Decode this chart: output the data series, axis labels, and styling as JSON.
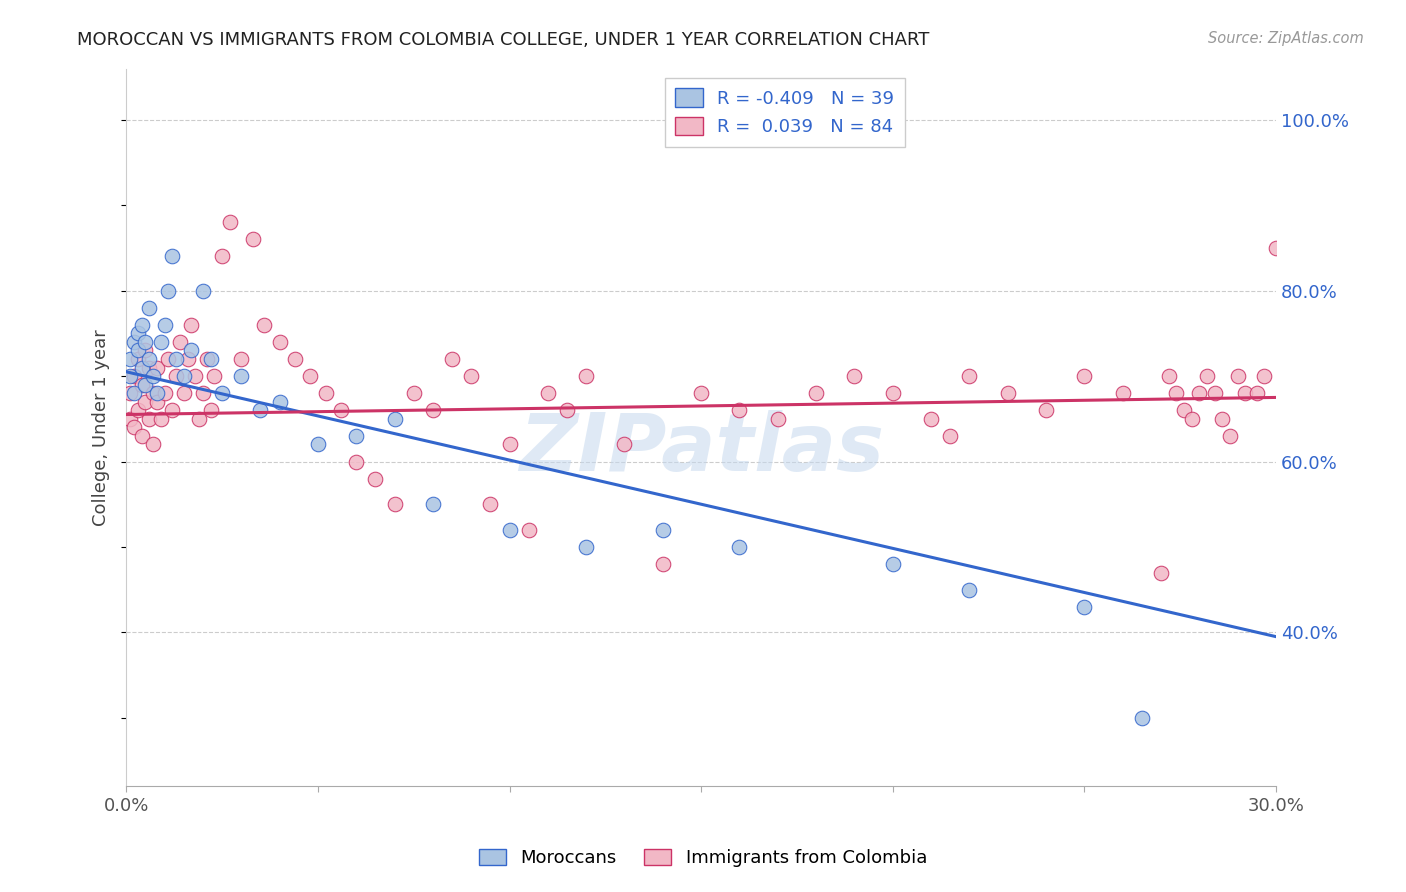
{
  "title": "MOROCCAN VS IMMIGRANTS FROM COLOMBIA COLLEGE, UNDER 1 YEAR CORRELATION CHART",
  "source": "Source: ZipAtlas.com",
  "ylabel": "College, Under 1 year",
  "watermark": "ZIPatlas",
  "moroccan_R": -0.409,
  "moroccan_N": 39,
  "colombia_R": 0.039,
  "colombia_N": 84,
  "xlim": [
    0.0,
    0.3
  ],
  "ylim": [
    0.22,
    1.06
  ],
  "xticks": [
    0.0,
    0.05,
    0.1,
    0.15,
    0.2,
    0.25,
    0.3
  ],
  "yticks": [
    0.4,
    0.6,
    0.8,
    1.0
  ],
  "color_moroccan": "#aac4e2",
  "color_colombia": "#f2b8c6",
  "line_color_moroccan": "#3366cc",
  "line_color_colombia": "#cc3366",
  "background_color": "#ffffff",
  "moroccan_x": [
    0.001,
    0.001,
    0.002,
    0.002,
    0.003,
    0.003,
    0.004,
    0.004,
    0.005,
    0.005,
    0.006,
    0.006,
    0.007,
    0.008,
    0.009,
    0.01,
    0.011,
    0.012,
    0.013,
    0.015,
    0.017,
    0.02,
    0.022,
    0.025,
    0.03,
    0.035,
    0.04,
    0.05,
    0.06,
    0.07,
    0.08,
    0.1,
    0.12,
    0.14,
    0.16,
    0.2,
    0.22,
    0.25,
    0.265
  ],
  "moroccan_y": [
    0.72,
    0.7,
    0.74,
    0.68,
    0.75,
    0.73,
    0.76,
    0.71,
    0.74,
    0.69,
    0.78,
    0.72,
    0.7,
    0.68,
    0.74,
    0.76,
    0.8,
    0.84,
    0.72,
    0.7,
    0.73,
    0.8,
    0.72,
    0.68,
    0.7,
    0.66,
    0.67,
    0.62,
    0.63,
    0.65,
    0.55,
    0.52,
    0.5,
    0.52,
    0.5,
    0.48,
    0.45,
    0.43,
    0.3
  ],
  "colombia_x": [
    0.001,
    0.001,
    0.002,
    0.002,
    0.003,
    0.003,
    0.004,
    0.004,
    0.005,
    0.005,
    0.006,
    0.006,
    0.007,
    0.007,
    0.008,
    0.008,
    0.009,
    0.01,
    0.011,
    0.012,
    0.013,
    0.014,
    0.015,
    0.016,
    0.017,
    0.018,
    0.019,
    0.02,
    0.021,
    0.022,
    0.023,
    0.025,
    0.027,
    0.03,
    0.033,
    0.036,
    0.04,
    0.044,
    0.048,
    0.052,
    0.056,
    0.06,
    0.065,
    0.07,
    0.075,
    0.08,
    0.085,
    0.09,
    0.095,
    0.1,
    0.105,
    0.11,
    0.115,
    0.12,
    0.13,
    0.14,
    0.15,
    0.16,
    0.17,
    0.18,
    0.19,
    0.2,
    0.21,
    0.215,
    0.22,
    0.23,
    0.24,
    0.25,
    0.26,
    0.27,
    0.272,
    0.274,
    0.276,
    0.278,
    0.28,
    0.282,
    0.284,
    0.286,
    0.288,
    0.29,
    0.292,
    0.295,
    0.297,
    0.3
  ],
  "colombia_y": [
    0.68,
    0.65,
    0.7,
    0.64,
    0.72,
    0.66,
    0.69,
    0.63,
    0.73,
    0.67,
    0.71,
    0.65,
    0.68,
    0.62,
    0.67,
    0.71,
    0.65,
    0.68,
    0.72,
    0.66,
    0.7,
    0.74,
    0.68,
    0.72,
    0.76,
    0.7,
    0.65,
    0.68,
    0.72,
    0.66,
    0.7,
    0.84,
    0.88,
    0.72,
    0.86,
    0.76,
    0.74,
    0.72,
    0.7,
    0.68,
    0.66,
    0.6,
    0.58,
    0.55,
    0.68,
    0.66,
    0.72,
    0.7,
    0.55,
    0.62,
    0.52,
    0.68,
    0.66,
    0.7,
    0.62,
    0.48,
    0.68,
    0.66,
    0.65,
    0.68,
    0.7,
    0.68,
    0.65,
    0.63,
    0.7,
    0.68,
    0.66,
    0.7,
    0.68,
    0.47,
    0.7,
    0.68,
    0.66,
    0.65,
    0.68,
    0.7,
    0.68,
    0.65,
    0.63,
    0.7,
    0.68,
    0.68,
    0.7,
    0.85
  ],
  "moroccan_line_x": [
    0.0,
    0.3
  ],
  "moroccan_line_y": [
    0.705,
    0.395
  ],
  "colombia_line_x": [
    0.0,
    0.3
  ],
  "colombia_line_y": [
    0.655,
    0.675
  ]
}
